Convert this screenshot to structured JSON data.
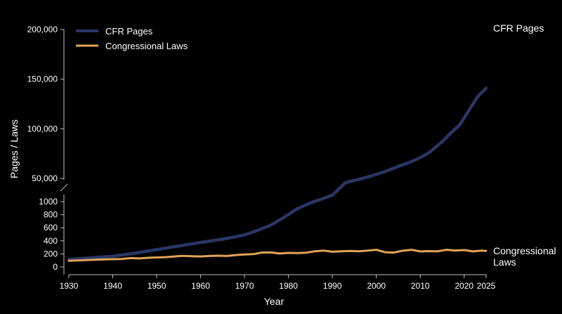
{
  "chart_data": {
    "type": "line",
    "xlabel": "Year",
    "ylabel": "Pages / Laws",
    "x_ticks": [
      1930,
      1940,
      1950,
      1960,
      1970,
      1980,
      1990,
      2000,
      2010,
      2020,
      2025
    ],
    "y_upper_ticks": [
      50000,
      100000,
      150000,
      200000
    ],
    "y_upper_tick_labels": [
      "50,000",
      "100,000",
      "150,000",
      "200,000"
    ],
    "y_lower_ticks": [
      0,
      200,
      400,
      600,
      800,
      1000
    ],
    "y_lower_tick_labels": [
      "0",
      "200",
      "400",
      "600",
      "800",
      "1000"
    ],
    "y_lower_range": [
      0,
      1100
    ],
    "y_upper_range": [
      45000,
      203000
    ],
    "axis_break": true,
    "legend_position": "top-left",
    "series": [
      {
        "name": "CFR Pages",
        "color": "#2a3664",
        "end_label": "CFR Pages",
        "points": [
          [
            1930,
            115
          ],
          [
            1935,
            140
          ],
          [
            1940,
            165
          ],
          [
            1945,
            210
          ],
          [
            1950,
            265
          ],
          [
            1955,
            320
          ],
          [
            1960,
            375
          ],
          [
            1965,
            425
          ],
          [
            1970,
            490
          ],
          [
            1973,
            560
          ],
          [
            1976,
            640
          ],
          [
            1979,
            760
          ],
          [
            1982,
            890
          ],
          [
            1985,
            980
          ],
          [
            1988,
            1050
          ],
          [
            1990,
            1100
          ],
          [
            1993,
            45800
          ],
          [
            1996,
            49000
          ],
          [
            1998,
            51500
          ],
          [
            2000,
            54000
          ],
          [
            2002,
            57000
          ],
          [
            2005,
            62000
          ],
          [
            2008,
            67000
          ],
          [
            2010,
            71000
          ],
          [
            2012,
            76000
          ],
          [
            2015,
            87000
          ],
          [
            2017,
            96000
          ],
          [
            2019,
            104000
          ],
          [
            2021,
            118000
          ],
          [
            2023,
            132000
          ],
          [
            2025,
            141000
          ]
        ]
      },
      {
        "name": "Congressional Laws",
        "color": "#e0a458",
        "end_label": "Congressional Laws",
        "points": [
          [
            1930,
            95
          ],
          [
            1932,
            100
          ],
          [
            1934,
            105
          ],
          [
            1936,
            110
          ],
          [
            1938,
            115
          ],
          [
            1940,
            118
          ],
          [
            1942,
            120
          ],
          [
            1944,
            135
          ],
          [
            1946,
            130
          ],
          [
            1948,
            140
          ],
          [
            1950,
            145
          ],
          [
            1952,
            150
          ],
          [
            1954,
            160
          ],
          [
            1956,
            170
          ],
          [
            1958,
            165
          ],
          [
            1960,
            160
          ],
          [
            1962,
            168
          ],
          [
            1964,
            172
          ],
          [
            1966,
            168
          ],
          [
            1968,
            182
          ],
          [
            1970,
            190
          ],
          [
            1972,
            196
          ],
          [
            1974,
            220
          ],
          [
            1976,
            222
          ],
          [
            1978,
            205
          ],
          [
            1980,
            215
          ],
          [
            1982,
            212
          ],
          [
            1984,
            218
          ],
          [
            1986,
            240
          ],
          [
            1988,
            250
          ],
          [
            1990,
            232
          ],
          [
            1992,
            240
          ],
          [
            1994,
            245
          ],
          [
            1996,
            240
          ],
          [
            1998,
            250
          ],
          [
            2000,
            262
          ],
          [
            2002,
            225
          ],
          [
            2004,
            220
          ],
          [
            2006,
            248
          ],
          [
            2008,
            262
          ],
          [
            2010,
            238
          ],
          [
            2012,
            242
          ],
          [
            2014,
            240
          ],
          [
            2016,
            262
          ],
          [
            2018,
            252
          ],
          [
            2020,
            258
          ],
          [
            2022,
            238
          ],
          [
            2024,
            250
          ],
          [
            2025,
            245
          ]
        ]
      }
    ]
  }
}
